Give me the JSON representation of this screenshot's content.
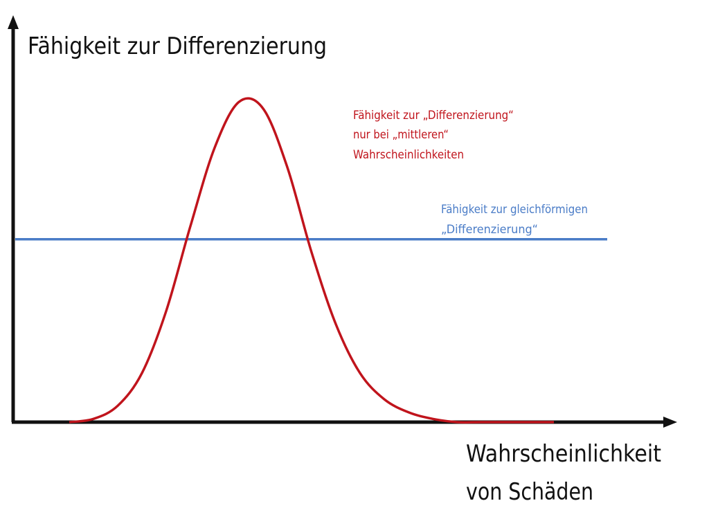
{
  "colors": {
    "axis": "#111111",
    "curve": "#c0141c",
    "flat": "#4a7cc7",
    "background": "#ffffff"
  },
  "chart_data": {
    "type": "line",
    "title": "Fähigkeit zur Differenzierung",
    "xlabel": [
      "Wahrscheinlichkeit",
      "von Schäden"
    ],
    "ylabel": "",
    "grid": false,
    "series": [
      {
        "label_lines": [
          "Fähigkeit zur „Differenzierung“",
          "nur bei „mittleren“",
          "Wahrscheinlichkeiten"
        ],
        "color": "#c0141c",
        "x": [
          0.0,
          0.05,
          0.1,
          0.15,
          0.2,
          0.25,
          0.3,
          0.35,
          0.4,
          0.45,
          0.5,
          0.55,
          0.6,
          0.65,
          0.7,
          0.75,
          0.8,
          0.85,
          0.9,
          0.95,
          1.0
        ],
        "y": [
          0.0,
          0.01,
          0.05,
          0.15,
          0.34,
          0.6,
          0.84,
          0.98,
          0.96,
          0.78,
          0.52,
          0.3,
          0.15,
          0.07,
          0.03,
          0.01,
          0.0,
          0.0,
          0.0,
          0.0,
          0.0
        ]
      },
      {
        "label_lines": [
          "Fähigkeit zur gleichförmigen",
          "„Differenzierung“"
        ],
        "color": "#4a7cc7",
        "x": [
          0.0,
          1.0
        ],
        "y": [
          0.56,
          0.56
        ]
      }
    ]
  }
}
